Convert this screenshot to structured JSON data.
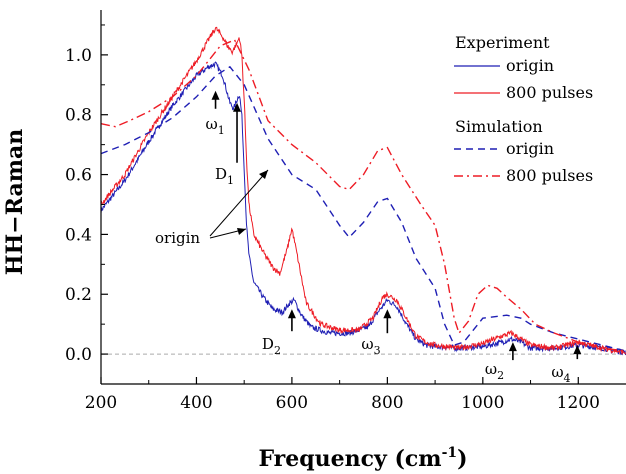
{
  "chart_data": {
    "type": "line",
    "xlabel": "Frequency (cm",
    "xlabel_sup": "-1",
    "xlabel_end": ")",
    "ylabel": "HH−Raman",
    "xlim": [
      200,
      1300
    ],
    "ylim": [
      -0.1,
      1.15
    ],
    "xticks": [
      200,
      400,
      600,
      800,
      1000,
      1200
    ],
    "yticks": [
      0.0,
      0.2,
      0.4,
      0.6,
      0.8,
      1.0
    ],
    "xtick_labels": [
      "200",
      "400",
      "600",
      "800",
      "1000",
      "1200"
    ],
    "ytick_labels": [
      "0.0",
      "0.2",
      "0.4",
      "0.6",
      "0.8",
      "1.0"
    ],
    "baseline": 0.0,
    "grid": false,
    "legend_placement": "top-right",
    "legend": {
      "group1": "Experiment",
      "group2": "Simulation",
      "items": [
        "origin",
        "800 pulses",
        "origin",
        "800 pulses"
      ]
    },
    "colors": {
      "blue": "#1f1fb4",
      "red": "#ee1c25",
      "baseline": "#aaaaaa"
    },
    "series": [
      {
        "name": "origin",
        "group": "Experiment",
        "color": "#1f1fb4",
        "style": "solid",
        "x": [
          200,
          250,
          300,
          350,
          400,
          425,
          440,
          455,
          470,
          478,
          485,
          490,
          495,
          500,
          505,
          510,
          520,
          540,
          560,
          580,
          595,
          605,
          620,
          640,
          680,
          720,
          760,
          780,
          800,
          820,
          840,
          860,
          880,
          900,
          950,
          1000,
          1040,
          1060,
          1080,
          1100,
          1150,
          1200,
          1250,
          1300
        ],
        "y": [
          0.48,
          0.58,
          0.71,
          0.83,
          0.93,
          0.96,
          0.97,
          0.93,
          0.84,
          0.82,
          0.85,
          0.87,
          0.8,
          0.62,
          0.43,
          0.33,
          0.24,
          0.19,
          0.15,
          0.14,
          0.17,
          0.18,
          0.13,
          0.09,
          0.07,
          0.07,
          0.09,
          0.14,
          0.18,
          0.16,
          0.1,
          0.05,
          0.03,
          0.025,
          0.02,
          0.025,
          0.04,
          0.05,
          0.04,
          0.02,
          0.02,
          0.03,
          0.02,
          0.005
        ]
      },
      {
        "name": "800 pulses",
        "group": "Experiment",
        "color": "#ee1c25",
        "style": "solid",
        "x": [
          200,
          250,
          300,
          350,
          400,
          425,
          440,
          455,
          465,
          475,
          485,
          490,
          495,
          500,
          505,
          510,
          520,
          540,
          560,
          575,
          590,
          600,
          610,
          630,
          660,
          700,
          740,
          770,
          790,
          800,
          820,
          840,
          860,
          880,
          900,
          950,
          1000,
          1040,
          1060,
          1080,
          1100,
          1150,
          1200,
          1250,
          1300
        ],
        "y": [
          0.5,
          0.6,
          0.74,
          0.86,
          0.98,
          1.05,
          1.09,
          1.06,
          1.03,
          1.01,
          1.04,
          1.06,
          1.0,
          0.85,
          0.65,
          0.5,
          0.4,
          0.34,
          0.29,
          0.27,
          0.35,
          0.42,
          0.34,
          0.17,
          0.1,
          0.08,
          0.08,
          0.12,
          0.19,
          0.2,
          0.18,
          0.12,
          0.06,
          0.04,
          0.03,
          0.02,
          0.035,
          0.06,
          0.07,
          0.05,
          0.03,
          0.02,
          0.04,
          0.02,
          0.005
        ]
      },
      {
        "name": "origin",
        "group": "Simulation",
        "color": "#1f1fb4",
        "style": "dashed",
        "x": [
          200,
          250,
          300,
          350,
          400,
          440,
          470,
          500,
          550,
          600,
          650,
          700,
          720,
          750,
          780,
          800,
          830,
          860,
          900,
          920,
          940,
          960,
          980,
          1000,
          1050,
          1080,
          1100,
          1150,
          1200,
          1250,
          1300
        ],
        "y": [
          0.67,
          0.7,
          0.74,
          0.79,
          0.86,
          0.93,
          0.96,
          0.9,
          0.72,
          0.6,
          0.55,
          0.43,
          0.39,
          0.44,
          0.51,
          0.52,
          0.44,
          0.32,
          0.22,
          0.1,
          0.03,
          0.04,
          0.08,
          0.12,
          0.13,
          0.12,
          0.1,
          0.07,
          0.05,
          0.03,
          0.01
        ]
      },
      {
        "name": "800 pulses",
        "group": "Simulation",
        "color": "#ee1c25",
        "style": "dashdot",
        "x": [
          200,
          230,
          260,
          300,
          350,
          400,
          450,
          480,
          510,
          550,
          600,
          650,
          700,
          720,
          750,
          780,
          800,
          830,
          870,
          900,
          920,
          940,
          950,
          970,
          990,
          1010,
          1030,
          1050,
          1080,
          1110,
          1150,
          1200,
          1250,
          1300
        ],
        "y": [
          0.77,
          0.76,
          0.78,
          0.81,
          0.86,
          0.93,
          1.03,
          1.05,
          0.95,
          0.78,
          0.7,
          0.64,
          0.56,
          0.55,
          0.6,
          0.68,
          0.69,
          0.6,
          0.5,
          0.43,
          0.3,
          0.12,
          0.07,
          0.11,
          0.2,
          0.23,
          0.22,
          0.19,
          0.15,
          0.1,
          0.07,
          0.04,
          0.02,
          0.01
        ]
      }
    ],
    "annotations": [
      {
        "label": "ω",
        "sub": "1",
        "arrow_at": [
          440,
          0.88
        ]
      },
      {
        "label": "D",
        "sub": "1",
        "arrow_at": [
          485,
          0.84
        ]
      },
      {
        "label": "D",
        "sub": "2",
        "arrow_at": [
          600,
          0.15
        ]
      },
      {
        "label": "ω",
        "sub": "3",
        "arrow_at": [
          800,
          0.15
        ]
      },
      {
        "label": "ω",
        "sub": "2",
        "arrow_at": [
          1063,
          0.04
        ]
      },
      {
        "label": "ω",
        "sub": "4",
        "arrow_at": [
          1198,
          0.03
        ]
      },
      {
        "label": "origin"
      }
    ]
  }
}
